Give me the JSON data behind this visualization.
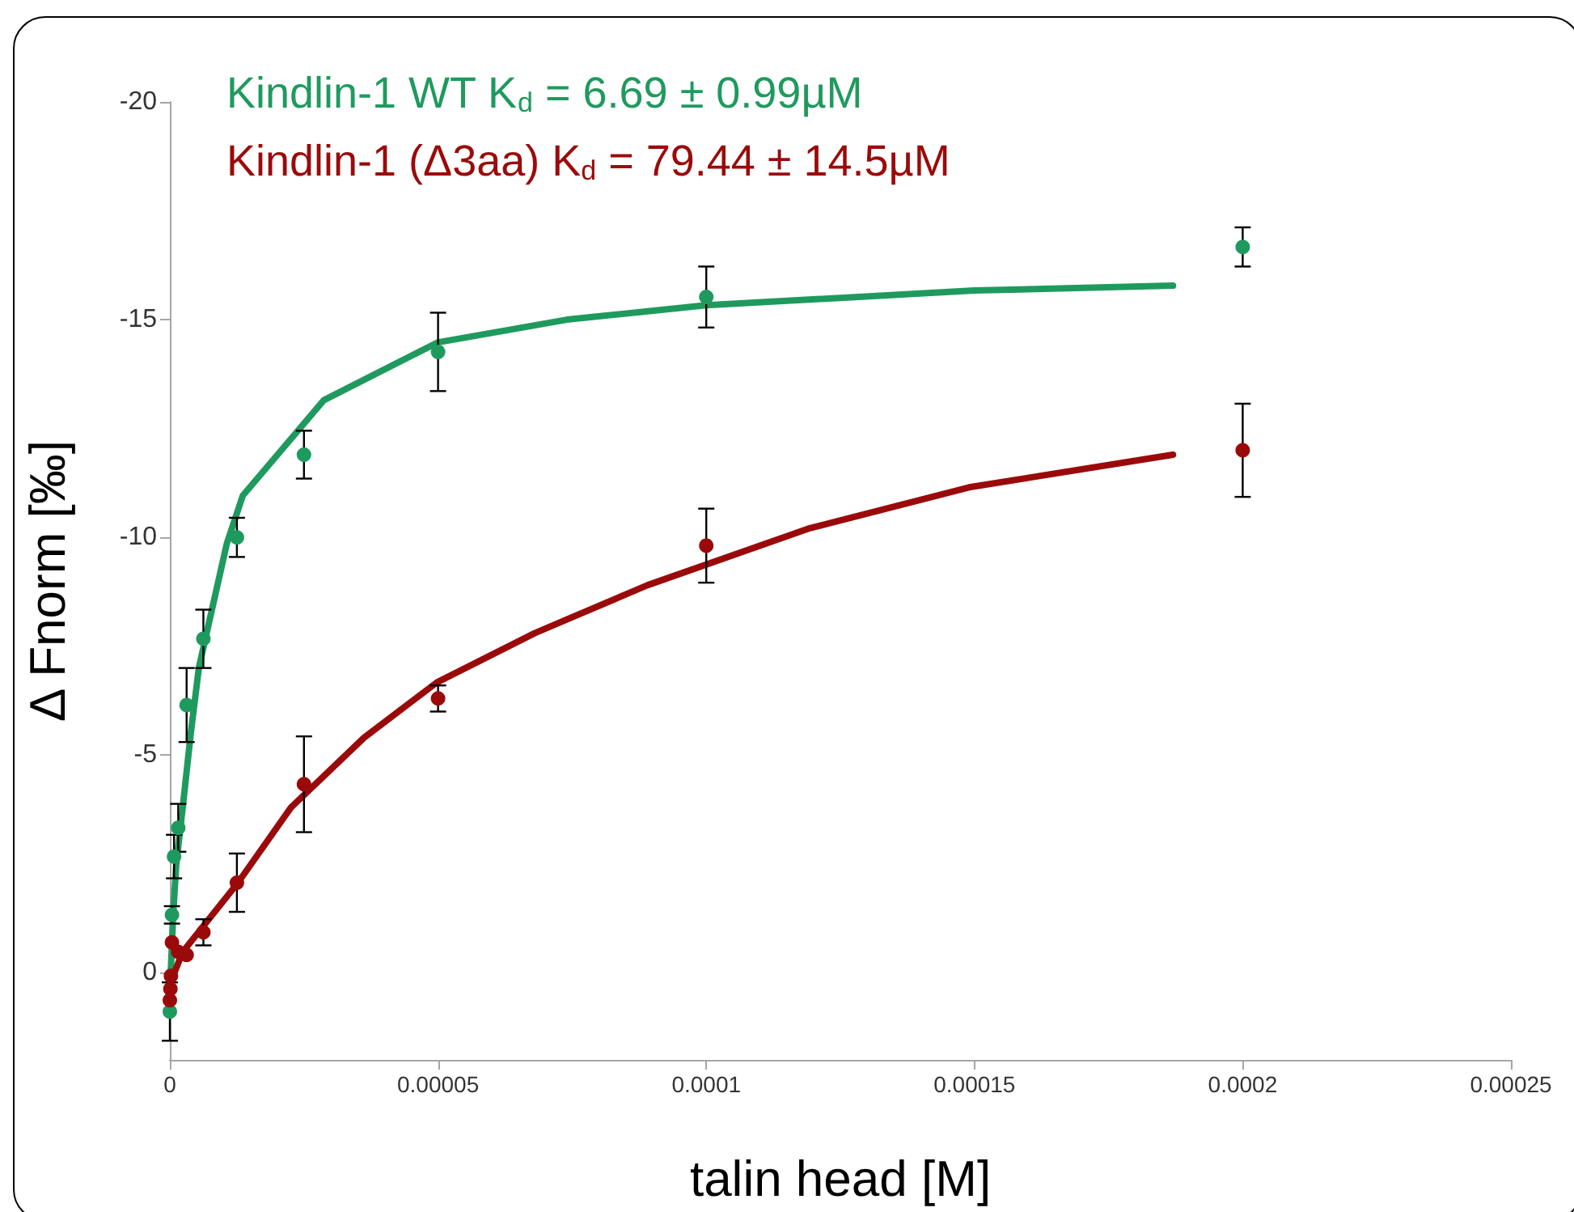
{
  "chart_data": {
    "type": "scatter",
    "xlabel": "talin head [M]",
    "ylabel": "Δ Fnorm [‰]",
    "xlim": [
      0,
      0.00025
    ],
    "xticks": [
      0,
      {
        "value": 5e-05,
        "label": "0.00005"
      },
      {
        "value": 0.0001,
        "label": "0.0001"
      },
      {
        "value": 0.00015,
        "label": "0.00015"
      },
      {
        "value": 0.0002,
        "label": "0.0002"
      },
      {
        "value": 0.00025,
        "label": "0.00025"
      }
    ],
    "ylim": [
      2,
      -20
    ],
    "yticks": [
      -20,
      -15,
      -10,
      -5,
      0
    ],
    "grid": false,
    "marker": "circle",
    "series": [
      {
        "name": "Kindlin-1 WT K$_{d}$ = 6.69 ± 0.99µM",
        "color": "#1f9a5e",
        "x": [
          0.0002,
          0.0001,
          5e-05,
          2.5e-05,
          1.25e-05,
          6.25e-06,
          3.125e-06,
          1.5625e-06,
          7.8e-07,
          3.9e-07,
          1e-07,
          0
        ],
        "values": [
          -16.67,
          -15.52,
          -14.26,
          -11.9,
          -10.0,
          -7.67,
          -6.15,
          -3.33,
          -2.67,
          -1.33,
          null,
          0.89
        ],
        "errors": [
          0.45,
          0.7,
          0.9,
          0.55,
          0.45,
          0.67,
          0.85,
          0.55,
          0.5,
          0.2,
          null,
          0.67
        ]
      },
      {
        "name": "Kindlin-1 (Δ3aa) K$_{d}$ = 79.44 ± 14.5µM",
        "color": "#9b0a0a",
        "x": [
          0.0002,
          0.0001,
          5e-05,
          2.5e-05,
          1.25e-05,
          6.25e-06,
          3.125e-06,
          1.5625e-06,
          7.8e-07,
          3.9e-07,
          2e-07,
          1e-07,
          0
        ],
        "values": [
          -12.0,
          -9.81,
          -6.3,
          -4.33,
          -2.07,
          -0.93,
          -0.41,
          -0.48,
          null,
          -0.7,
          0.07,
          0.37,
          0.63
        ],
        "errors": [
          1.07,
          0.85,
          0.3,
          1.1,
          0.67,
          0.3,
          null,
          null,
          null,
          null,
          null,
          null,
          null
        ]
      },
      {
        "type": "line",
        "marker": "none",
        "color": "#1f9a5e",
        "line_style": "solid",
        "x": [
          0,
          6e-07,
          1.2e-06,
          2.4e-06,
          3.9e-06,
          5.4e-06,
          7.5e-06,
          1.06e-05,
          1.36e-05,
          2.87e-05,
          5e-05,
          7.4e-05,
          0.0001,
          0.00015,
          0.000187
        ],
        "values": [
          0.5,
          -1.3,
          -2.5,
          -3.8,
          -5.5,
          -7.0,
          -8.15,
          -9.85,
          -10.96,
          -13.15,
          -14.48,
          -15.0,
          -15.33,
          -15.67,
          -15.78
        ]
      },
      {
        "type": "line",
        "marker": "none",
        "color": "#9b0a0a",
        "line_style": "solid",
        "x": [
          0,
          2.4e-06,
          1.27e-05,
          2.26e-05,
          3.62e-05,
          4.98e-05,
          6.8e-05,
          8.9e-05,
          0.000119,
          0.000149,
          0.000187
        ],
        "values": [
          0.26,
          -0.48,
          -2.07,
          -3.8,
          -5.4,
          -6.67,
          -7.8,
          -8.9,
          -10.2,
          -11.15,
          -11.9
        ]
      }
    ]
  }
}
